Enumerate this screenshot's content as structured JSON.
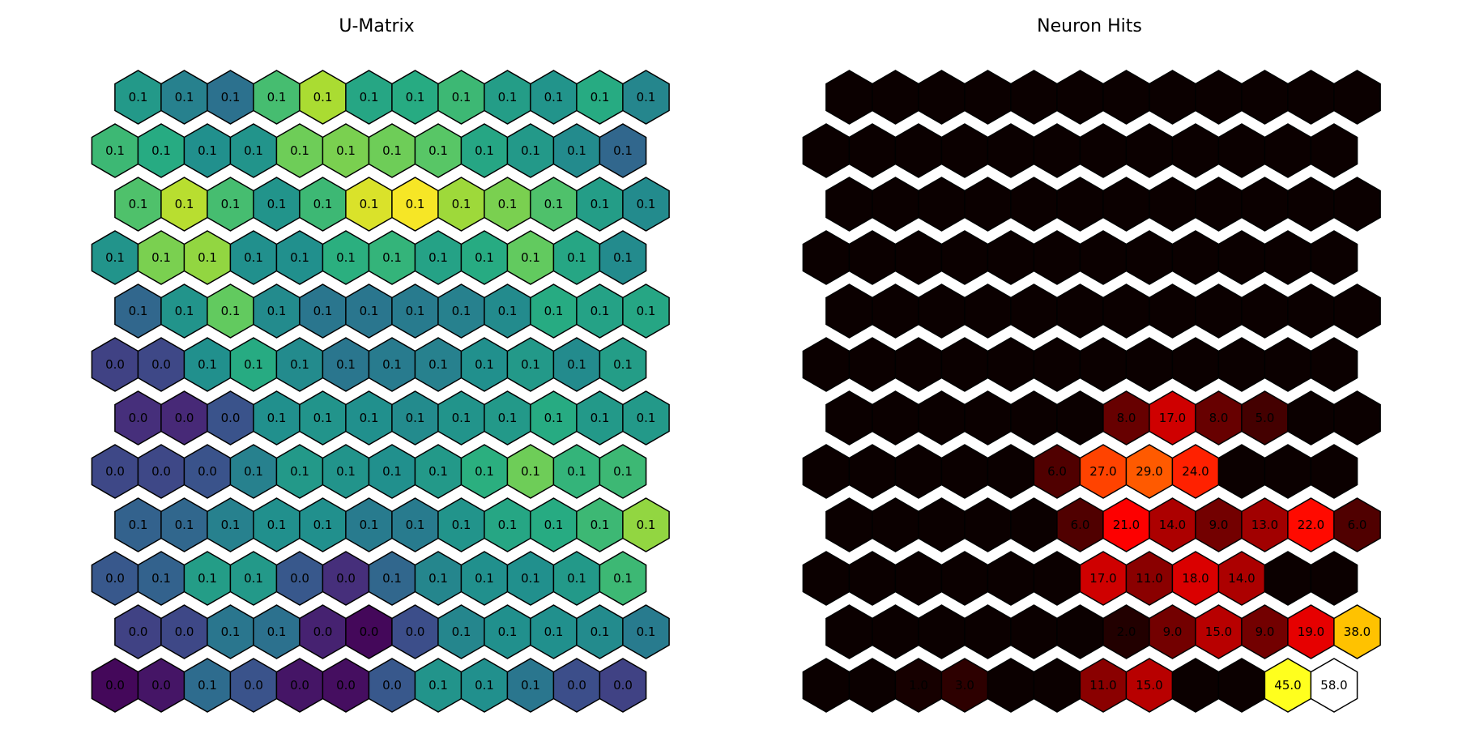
{
  "chart_data": [
    {
      "type": "heatmap",
      "layout": "hexagonal",
      "title": "U-Matrix",
      "colormap": "viridis",
      "rows": 12,
      "cols": 12,
      "values": [
        [
          0.54,
          0.44,
          0.38,
          0.7,
          0.88,
          0.6,
          0.62,
          0.68,
          0.56,
          0.52,
          0.62,
          0.46
        ],
        [
          0.68,
          0.62,
          0.5,
          0.52,
          0.78,
          0.8,
          0.78,
          0.74,
          0.6,
          0.54,
          0.48,
          0.34
        ],
        [
          0.72,
          0.9,
          0.7,
          0.52,
          0.68,
          0.95,
          0.99,
          0.86,
          0.8,
          0.72,
          0.56,
          0.48
        ],
        [
          0.52,
          0.8,
          0.84,
          0.5,
          0.5,
          0.64,
          0.66,
          0.58,
          0.62,
          0.76,
          0.6,
          0.48
        ],
        [
          0.34,
          0.52,
          0.76,
          0.48,
          0.4,
          0.4,
          0.42,
          0.44,
          0.48,
          0.62,
          0.58,
          0.6
        ],
        [
          0.2,
          0.22,
          0.5,
          0.62,
          0.48,
          0.4,
          0.42,
          0.44,
          0.5,
          0.54,
          0.48,
          0.56
        ],
        [
          0.14,
          0.12,
          0.26,
          0.5,
          0.52,
          0.5,
          0.48,
          0.52,
          0.54,
          0.62,
          0.54,
          0.54
        ],
        [
          0.22,
          0.22,
          0.26,
          0.44,
          0.54,
          0.52,
          0.5,
          0.54,
          0.64,
          0.78,
          0.66,
          0.68
        ],
        [
          0.32,
          0.34,
          0.44,
          0.5,
          0.5,
          0.42,
          0.42,
          0.52,
          0.6,
          0.62,
          0.68,
          0.84
        ],
        [
          0.28,
          0.32,
          0.56,
          0.54,
          0.28,
          0.14,
          0.34,
          0.46,
          0.5,
          0.5,
          0.54,
          0.68
        ],
        [
          0.2,
          0.22,
          0.4,
          0.38,
          0.1,
          0.02,
          0.24,
          0.46,
          0.5,
          0.5,
          0.48,
          0.42
        ],
        [
          0.02,
          0.06,
          0.36,
          0.26,
          0.06,
          0.04,
          0.28,
          0.52,
          0.5,
          0.4,
          0.24,
          0.2
        ]
      ],
      "labels": [
        [
          "0.1",
          "0.1",
          "0.1",
          "0.1",
          "0.1",
          "0.1",
          "0.1",
          "0.1",
          "0.1",
          "0.1",
          "0.1",
          "0.1"
        ],
        [
          "0.1",
          "0.1",
          "0.1",
          "0.1",
          "0.1",
          "0.1",
          "0.1",
          "0.1",
          "0.1",
          "0.1",
          "0.1",
          "0.1"
        ],
        [
          "0.1",
          "0.1",
          "0.1",
          "0.1",
          "0.1",
          "0.1",
          "0.1",
          "0.1",
          "0.1",
          "0.1",
          "0.1",
          "0.1"
        ],
        [
          "0.1",
          "0.1",
          "0.1",
          "0.1",
          "0.1",
          "0.1",
          "0.1",
          "0.1",
          "0.1",
          "0.1",
          "0.1",
          "0.1"
        ],
        [
          "0.1",
          "0.1",
          "0.1",
          "0.1",
          "0.1",
          "0.1",
          "0.1",
          "0.1",
          "0.1",
          "0.1",
          "0.1",
          "0.1"
        ],
        [
          "0.0",
          "0.0",
          "0.1",
          "0.1",
          "0.1",
          "0.1",
          "0.1",
          "0.1",
          "0.1",
          "0.1",
          "0.1",
          "0.1"
        ],
        [
          "0.0",
          "0.0",
          "0.0",
          "0.1",
          "0.1",
          "0.1",
          "0.1",
          "0.1",
          "0.1",
          "0.1",
          "0.1",
          "0.1"
        ],
        [
          "0.0",
          "0.0",
          "0.0",
          "0.1",
          "0.1",
          "0.1",
          "0.1",
          "0.1",
          "0.1",
          "0.1",
          "0.1",
          "0.1"
        ],
        [
          "0.1",
          "0.1",
          "0.1",
          "0.1",
          "0.1",
          "0.1",
          "0.1",
          "0.1",
          "0.1",
          "0.1",
          "0.1",
          "0.1"
        ],
        [
          "0.0",
          "0.1",
          "0.1",
          "0.1",
          "0.0",
          "0.0",
          "0.1",
          "0.1",
          "0.1",
          "0.1",
          "0.1",
          "0.1"
        ],
        [
          "0.0",
          "0.0",
          "0.1",
          "0.1",
          "0.0",
          "0.0",
          "0.0",
          "0.1",
          "0.1",
          "0.1",
          "0.1",
          "0.1"
        ],
        [
          "0.0",
          "0.0",
          "0.1",
          "0.0",
          "0.0",
          "0.0",
          "0.0",
          "0.1",
          "0.1",
          "0.1",
          "0.0",
          "0.0"
        ]
      ]
    },
    {
      "type": "heatmap",
      "layout": "hexagonal",
      "title": "Neuron Hits",
      "colormap": "hot",
      "rows": 12,
      "cols": 12,
      "max": 58,
      "values": [
        [
          0,
          0,
          0,
          0,
          0,
          0,
          0,
          0,
          0,
          0,
          0,
          0
        ],
        [
          0,
          0,
          0,
          0,
          0,
          0,
          0,
          0,
          0,
          0,
          0,
          0
        ],
        [
          0,
          0,
          0,
          0,
          0,
          0,
          0,
          0,
          0,
          0,
          0,
          0
        ],
        [
          0,
          0,
          0,
          0,
          0,
          0,
          0,
          0,
          0,
          0,
          0,
          0
        ],
        [
          0,
          0,
          0,
          0,
          0,
          0,
          0,
          0,
          0,
          0,
          0,
          0
        ],
        [
          0,
          0,
          0,
          0,
          0,
          0,
          0,
          0,
          0,
          0,
          0,
          0
        ],
        [
          0,
          0,
          0,
          0,
          0,
          0,
          8,
          17,
          8,
          5,
          0,
          0
        ],
        [
          0,
          0,
          0,
          0,
          0,
          6,
          27,
          29,
          24,
          0,
          0,
          0
        ],
        [
          0,
          0,
          0,
          0,
          0,
          6,
          21,
          14,
          9,
          13,
          22,
          6
        ],
        [
          0,
          0,
          0,
          0,
          0,
          0,
          17,
          11,
          18,
          14,
          0,
          0
        ],
        [
          0,
          0,
          0,
          0,
          0,
          0,
          2,
          9,
          15,
          9,
          19,
          38
        ],
        [
          0,
          0,
          1,
          3,
          0,
          0,
          11,
          15,
          0,
          0,
          45,
          58
        ]
      ]
    }
  ]
}
